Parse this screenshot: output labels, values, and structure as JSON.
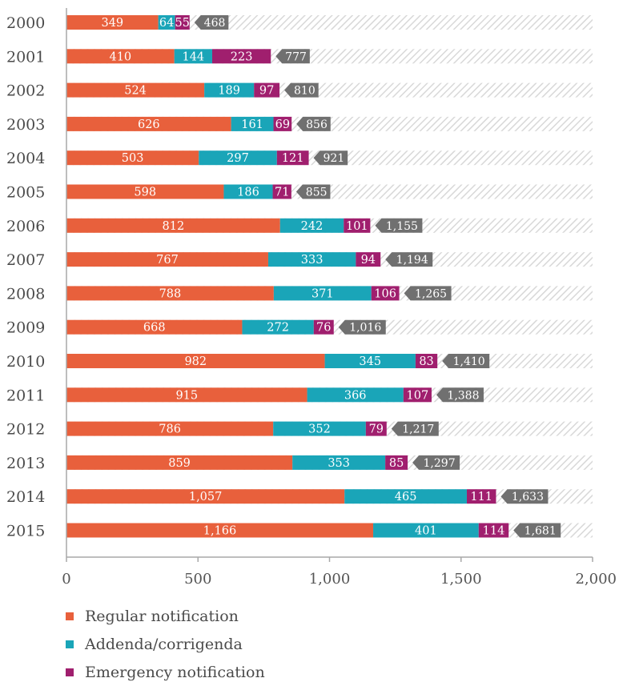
{
  "chart_data": {
    "type": "bar",
    "orientation": "horizontal",
    "stacked": true,
    "categories": [
      "2000",
      "2001",
      "2002",
      "2003",
      "2004",
      "2005",
      "2006",
      "2007",
      "2008",
      "2009",
      "2010",
      "2011",
      "2012",
      "2013",
      "2014",
      "2015"
    ],
    "series": [
      {
        "name": "Regular notification",
        "color": "#e8603c",
        "values": [
          349,
          410,
          524,
          626,
          503,
          598,
          812,
          767,
          788,
          668,
          982,
          915,
          786,
          859,
          1057,
          1166
        ]
      },
      {
        "name": "Addenda/corrigenda",
        "color": "#1aa5b8",
        "values": [
          64,
          144,
          189,
          161,
          297,
          186,
          242,
          333,
          371,
          272,
          345,
          366,
          352,
          353,
          465,
          401
        ]
      },
      {
        "name": "Emergency notification",
        "color": "#a01f6e",
        "values": [
          55,
          223,
          97,
          69,
          121,
          71,
          101,
          94,
          106,
          76,
          83,
          107,
          79,
          85,
          111,
          114
        ]
      }
    ],
    "totals": [
      468,
      777,
      810,
      856,
      921,
      855,
      1155,
      1194,
      1265,
      1016,
      1410,
      1388,
      1217,
      1297,
      1633,
      1681
    ],
    "value_labels": [
      [
        "349",
        "64",
        "55"
      ],
      [
        "410",
        "144",
        "223"
      ],
      [
        "524",
        "189",
        "97"
      ],
      [
        "626",
        "161",
        "69"
      ],
      [
        "503",
        "297",
        "121"
      ],
      [
        "598",
        "186",
        "71"
      ],
      [
        "812",
        "242",
        "101"
      ],
      [
        "767",
        "333",
        "94"
      ],
      [
        "788",
        "371",
        "106"
      ],
      [
        "668",
        "272",
        "76"
      ],
      [
        "982",
        "345",
        "83"
      ],
      [
        "915",
        "366",
        "107"
      ],
      [
        "786",
        "352",
        "79"
      ],
      [
        "859",
        "353",
        "85"
      ],
      [
        "1,057",
        "465",
        "111"
      ],
      [
        "1,166",
        "401",
        "114"
      ]
    ],
    "total_labels": [
      "468",
      "777",
      "810",
      "856",
      "921",
      "855",
      "1,155",
      "1,194",
      "1,265",
      "1,016",
      "1,410",
      "1,388",
      "1,217",
      "1,297",
      "1,633",
      "1,681"
    ],
    "xlim": [
      0,
      2000
    ],
    "xticks": [
      0,
      500,
      1000,
      1500,
      2000
    ],
    "xtick_labels": [
      "0",
      "500",
      "1,000",
      "1,500",
      "2,000"
    ],
    "total_label_color": "#707070",
    "background_hatch_color": "#dcdcdc",
    "legend_position": "bottom-left",
    "grid": false
  },
  "legend": [
    {
      "label": "Regular notification",
      "color": "#e8603c"
    },
    {
      "label": "Addenda/corrigenda",
      "color": "#1aa5b8"
    },
    {
      "label": "Emergency notification",
      "color": "#a01f6e"
    }
  ]
}
